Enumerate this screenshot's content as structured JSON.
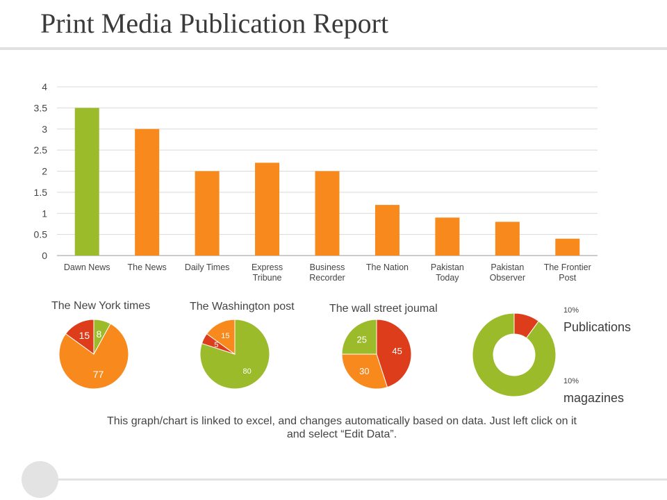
{
  "header": {
    "title": "Print Media Publication Report"
  },
  "chart_data": [
    {
      "type": "bar",
      "categories": [
        [
          "Dawn News"
        ],
        [
          "The News"
        ],
        [
          "Daily Times"
        ],
        [
          "Express",
          "Tribune"
        ],
        [
          "Business",
          "Recorder"
        ],
        [
          "The Nation"
        ],
        [
          "Pakistan",
          "Today"
        ],
        [
          "Pakistan",
          "Observer"
        ],
        [
          "The Frontier",
          "Post"
        ]
      ],
      "values": [
        3.5,
        3.0,
        2.0,
        2.2,
        2.0,
        1.2,
        0.9,
        0.8,
        0.4
      ],
      "ylim": [
        0,
        4
      ],
      "yticks": [
        "0",
        "0.5",
        "1",
        "1.5",
        "2",
        "2.5",
        "3",
        "3.5",
        "4"
      ],
      "grid": true,
      "colors": {
        "highlight": "#9bbb2a",
        "default": "#f7891d"
      },
      "highlight_index": 0
    },
    {
      "type": "pie",
      "title": "The New York times",
      "values": [
        8,
        77,
        15
      ],
      "colors": [
        "#9bbb2a",
        "#f7891d",
        "#de3d1c"
      ]
    },
    {
      "type": "pie",
      "title": "The Washington post",
      "values": [
        80,
        5,
        15
      ],
      "colors": [
        "#9bbb2a",
        "#de3d1c",
        "#f7891d"
      ]
    },
    {
      "type": "pie",
      "title": "The wall street joumal",
      "values": [
        45,
        30,
        25
      ],
      "colors": [
        "#de3d1c",
        "#f7891d",
        "#9bbb2a"
      ]
    },
    {
      "type": "pie",
      "title": "",
      "values": [
        10,
        90
      ],
      "colors": [
        "#de3d1c",
        "#9bbb2a"
      ],
      "donut": true
    }
  ],
  "legend": {
    "publications": {
      "pct": "10%",
      "label": "Publications"
    },
    "magazines": {
      "pct": "10%",
      "label": "magazines"
    }
  },
  "footnote": "This graph/chart is linked to excel, and changes automatically based on data. Just left click on it and select “Edit Data”."
}
